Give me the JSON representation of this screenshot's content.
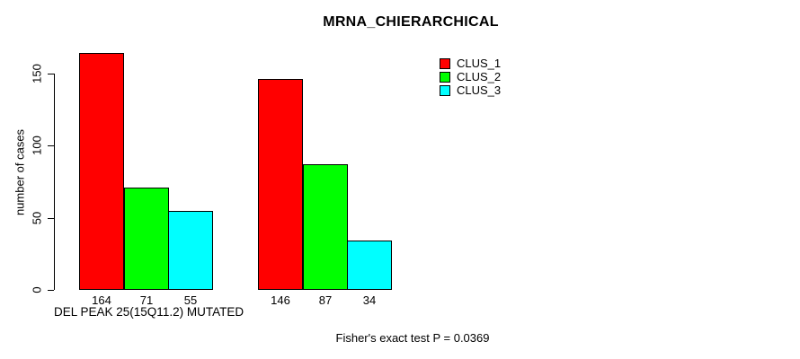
{
  "chart_data": {
    "type": "bar",
    "title": "MRNA_CHIERARCHICAL",
    "ylabel": "number of cases",
    "xlabel": "DEL PEAK 25(15Q11.2) MUTATED",
    "ylim": [
      0,
      150
    ],
    "yticks": [
      0,
      50,
      100,
      150
    ],
    "grid": false,
    "legend_position": "top-right",
    "series": [
      {
        "name": "CLUS_1",
        "color": "#ff0000",
        "values": [
          164,
          146
        ]
      },
      {
        "name": "CLUS_2",
        "color": "#00ff00",
        "values": [
          71,
          87
        ]
      },
      {
        "name": "CLUS_3",
        "color": "#00ffff",
        "values": [
          55,
          34
        ]
      }
    ],
    "bar_value_labels": [
      "164",
      "71",
      "55",
      "146",
      "87",
      "34"
    ],
    "annotation": "Fisher's exact test P = 0.0369",
    "background_color": "#ffffff",
    "axis_color": "#000000"
  }
}
